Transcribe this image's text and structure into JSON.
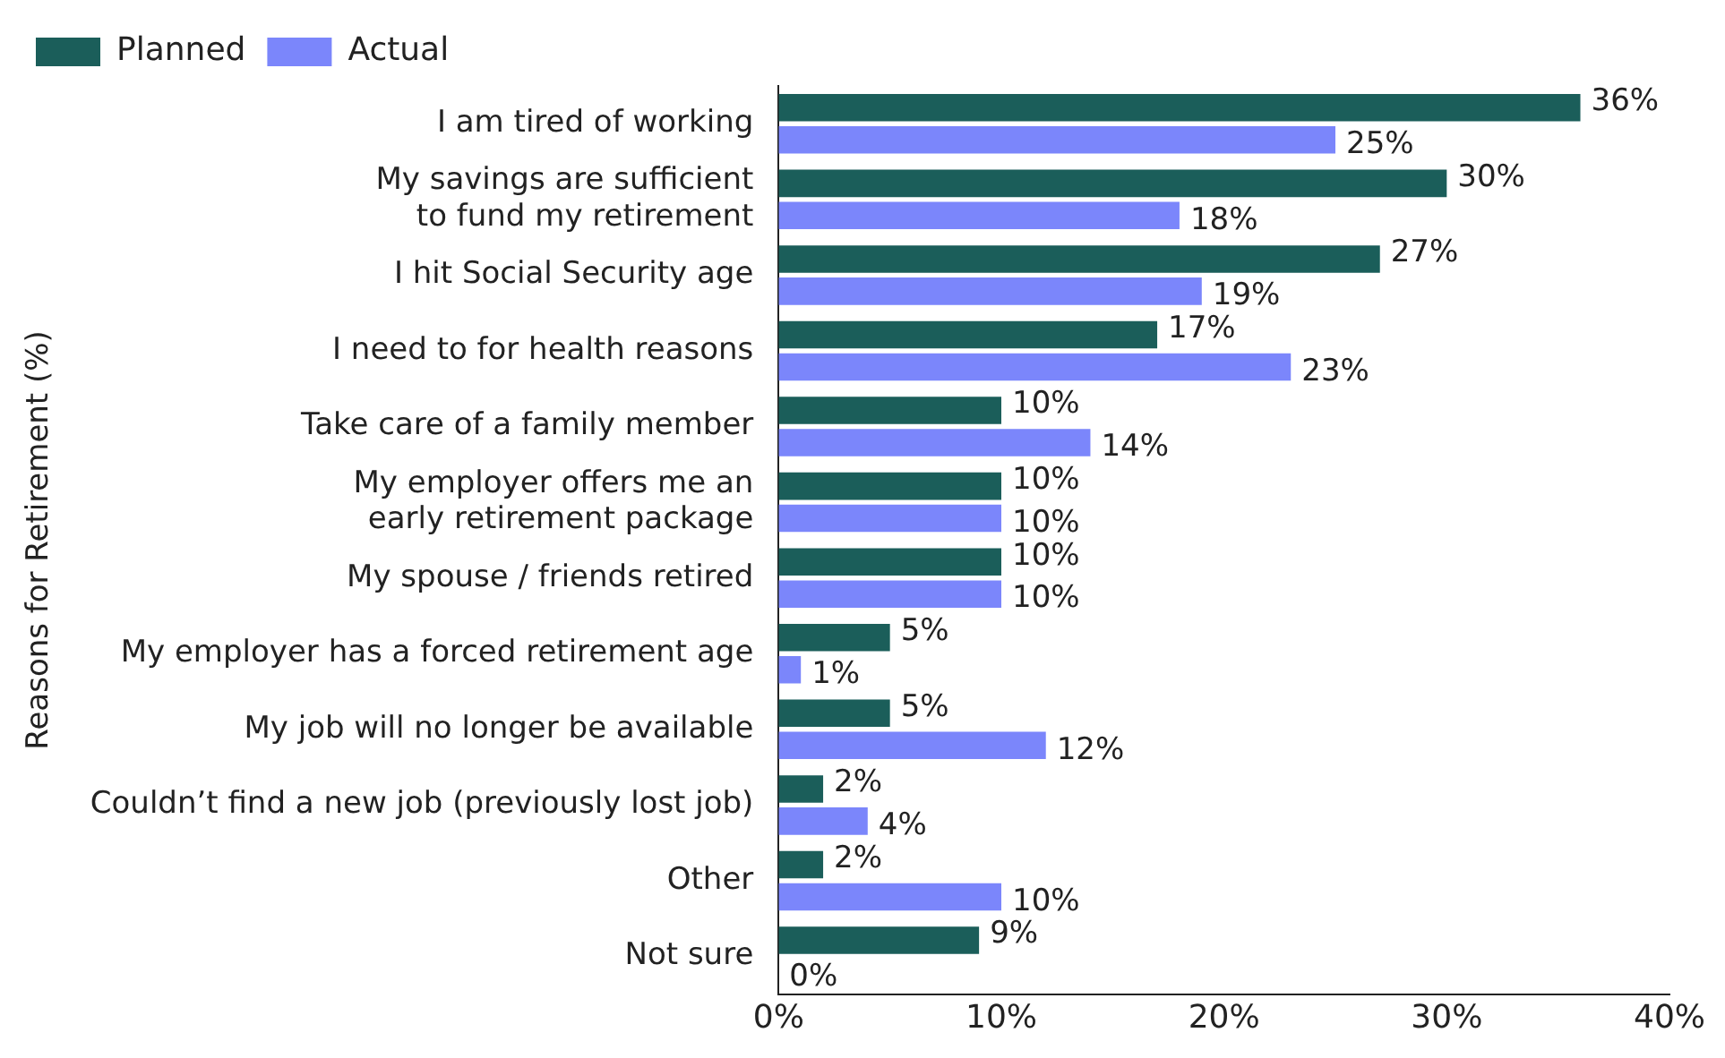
{
  "chart_data": {
    "type": "bar",
    "orientation": "horizontal",
    "ylabel": "Reasons for Retirement (%)",
    "categories": [
      "I am tired of working",
      "My savings are sufficient to fund my retirement",
      "I hit Social Security age",
      "I need to for health reasons",
      "Take care of a family member",
      "My employer offers me an early retirement package",
      "My spouse / friends retired",
      "My employer has a forced retirement age",
      "My job will no longer be available",
      "Couldn’t find a new job (previously lost job)",
      "Other",
      "Not sure"
    ],
    "series": [
      {
        "name": "Planned",
        "color": "#1b5e5a",
        "values": [
          36,
          30,
          27,
          17,
          10,
          10,
          10,
          5,
          5,
          2,
          2,
          9
        ],
        "value_labels": [
          "36%",
          "30%",
          "27%",
          "17%",
          "10%",
          "10%",
          "10%",
          "5%",
          "5%",
          "2%",
          "2%",
          "9%"
        ]
      },
      {
        "name": "Actual",
        "color": "#7b86fb",
        "values": [
          25,
          18,
          19,
          23,
          14,
          10,
          10,
          1,
          12,
          4,
          10,
          0
        ],
        "value_labels": [
          "25%",
          "18%",
          "19%",
          "23%",
          "14%",
          "10%",
          "10%",
          "1%",
          "12%",
          "4%",
          "10%",
          "0%"
        ]
      }
    ],
    "xlim": [
      0,
      40
    ],
    "xticks": [
      {
        "value": 0,
        "label": "0%"
      },
      {
        "value": 10,
        "label": "10%"
      },
      {
        "value": 20,
        "label": "20%"
      },
      {
        "value": 30,
        "label": "30%"
      },
      {
        "value": 40,
        "label": "40%"
      }
    ],
    "grid": false,
    "legend": "top left"
  }
}
